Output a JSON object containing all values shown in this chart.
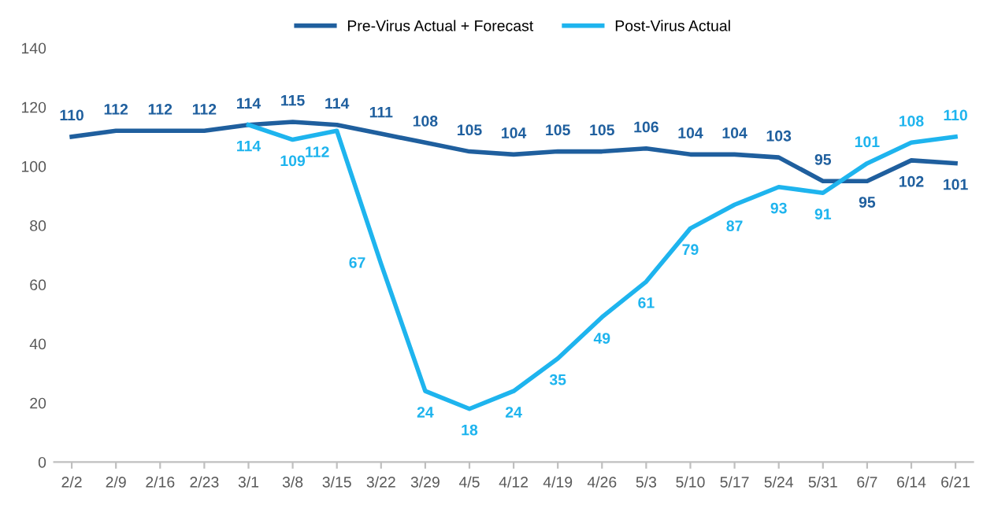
{
  "chart_data": {
    "type": "line",
    "categories": [
      "2/2",
      "2/9",
      "2/16",
      "2/23",
      "3/1",
      "3/8",
      "3/15",
      "3/22",
      "3/29",
      "4/5",
      "4/12",
      "4/19",
      "4/26",
      "5/3",
      "5/10",
      "5/17",
      "5/24",
      "5/31",
      "6/7",
      "6/14",
      "6/21"
    ],
    "series": [
      {
        "name": "Pre-Virus Actual + Forecast",
        "color": "#1f5f9e",
        "values": [
          110,
          112,
          112,
          112,
          114,
          115,
          114,
          111,
          108,
          105,
          104,
          105,
          105,
          106,
          104,
          104,
          103,
          95,
          95,
          102,
          101
        ]
      },
      {
        "name": "Post-Virus Actual",
        "color": "#1eb4ee",
        "values": [
          null,
          null,
          null,
          null,
          114,
          109,
          112,
          67,
          24,
          18,
          24,
          35,
          49,
          61,
          79,
          87,
          93,
          91,
          101,
          108,
          110
        ]
      }
    ],
    "ylim": [
      0,
      140
    ],
    "yticks": [
      0,
      20,
      40,
      60,
      80,
      100,
      120,
      140
    ],
    "grid": false,
    "legend": "top",
    "data_labels": true,
    "marker": "none",
    "line_style": "solid"
  }
}
